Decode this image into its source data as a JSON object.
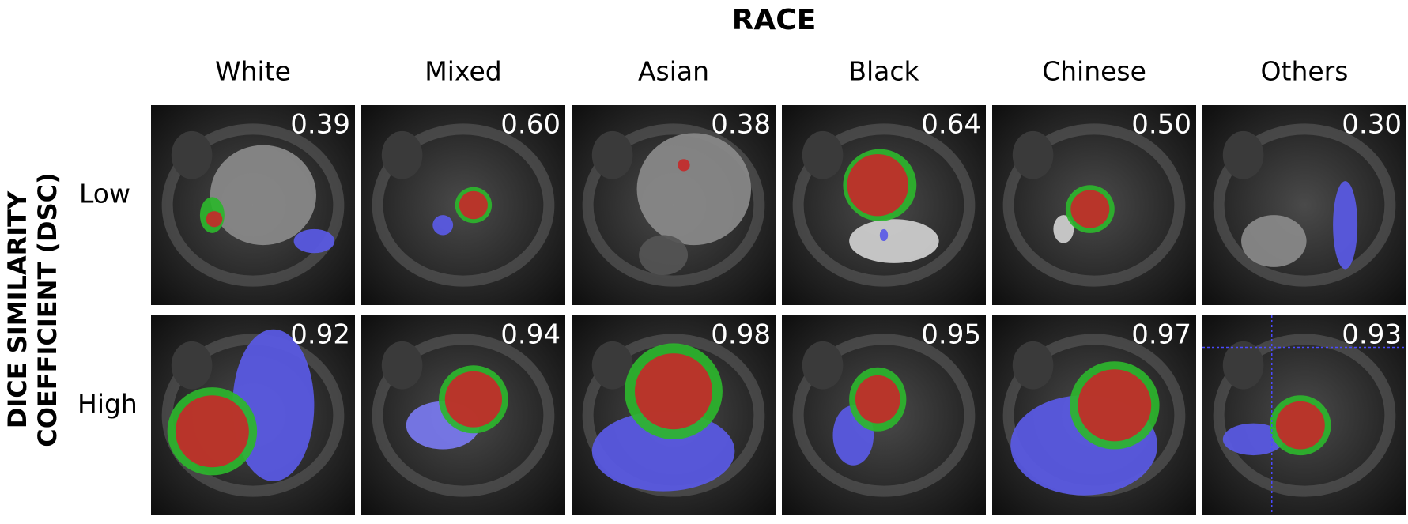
{
  "title": "RACE",
  "y_title": [
    "DICE SIMILARITY",
    "COEFFICIENT (DSC)"
  ],
  "columns": [
    "White",
    "Mixed",
    "Asian",
    "Black",
    "Chinese",
    "Others"
  ],
  "rows": [
    {
      "label": "Low",
      "dsc": [
        "0.39",
        "0.60",
        "0.38",
        "0.64",
        "0.50",
        "0.30"
      ]
    },
    {
      "label": "High",
      "dsc": [
        "0.92",
        "0.94",
        "0.98",
        "0.95",
        "0.97",
        "0.93"
      ]
    }
  ]
}
